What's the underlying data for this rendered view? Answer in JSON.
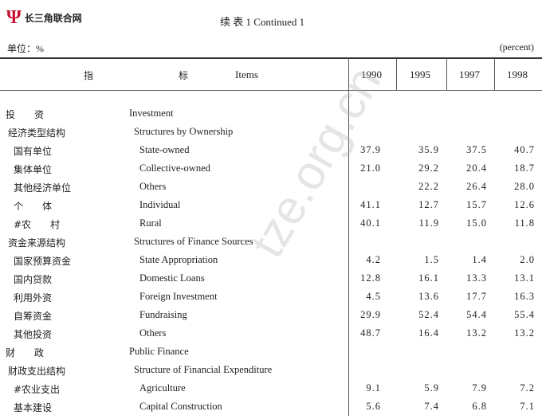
{
  "logo": {
    "text": "长三角联合网"
  },
  "title": "续 表 1   Continued 1",
  "unit_zh": "单位：%",
  "unit_en": "(percent)",
  "header": {
    "zh1": "指",
    "zh2": "标",
    "en": "Items",
    "years": [
      "1990",
      "1995",
      "1997",
      "1998"
    ]
  },
  "rows": [
    {
      "zh": "投　　资",
      "en": "Investment",
      "level": 0,
      "values": [
        "",
        "",
        "",
        ""
      ]
    },
    {
      "zh": "经济类型结构",
      "en": "Structures by Ownership",
      "level": 1,
      "values": [
        "",
        "",
        "",
        ""
      ]
    },
    {
      "zh": "国有单位",
      "en": "State-owned",
      "level": 2,
      "values": [
        "37.9",
        "35.9",
        "37.5",
        "40.7"
      ]
    },
    {
      "zh": "集体单位",
      "en": "Collective-owned",
      "level": 2,
      "values": [
        "21.0",
        "29.2",
        "20.4",
        "18.7"
      ]
    },
    {
      "zh": "其他经济单位",
      "en": "Others",
      "level": 2,
      "values": [
        "",
        "22.2",
        "26.4",
        "28.0"
      ]
    },
    {
      "zh": "个　　体",
      "en": "Individual",
      "level": 2,
      "values": [
        "41.1",
        "12.7",
        "15.7",
        "12.6"
      ]
    },
    {
      "zh": "#农　　村",
      "en": "Rural",
      "level": 2,
      "values": [
        "40.1",
        "11.9",
        "15.0",
        "11.8"
      ]
    },
    {
      "zh": "资金来源结构",
      "en": "Structures of Finance Sources",
      "level": 1,
      "values": [
        "",
        "",
        "",
        ""
      ]
    },
    {
      "zh": "国家预算资金",
      "en": "State Appropriation",
      "level": 2,
      "values": [
        "4.2",
        "1.5",
        "1.4",
        "2.0"
      ]
    },
    {
      "zh": "国内贷款",
      "en": "Domestic Loans",
      "level": 2,
      "values": [
        "12.8",
        "16.1",
        "13.3",
        "13.1"
      ]
    },
    {
      "zh": "利用外资",
      "en": "Foreign Investment",
      "level": 2,
      "values": [
        "4.5",
        "13.6",
        "17.7",
        "16.3"
      ]
    },
    {
      "zh": "自筹资金",
      "en": "Fundraising",
      "level": 2,
      "values": [
        "29.9",
        "52.4",
        "54.4",
        "55.4"
      ]
    },
    {
      "zh": "其他投资",
      "en": "Others",
      "level": 2,
      "values": [
        "48.7",
        "16.4",
        "13.2",
        "13.2"
      ]
    },
    {
      "zh": "财　　政",
      "en": "Public Finance",
      "level": 0,
      "values": [
        "",
        "",
        "",
        ""
      ]
    },
    {
      "zh": "财政支出结构",
      "en": "Structure of Financial Expenditure",
      "level": 1,
      "values": [
        "",
        "",
        "",
        ""
      ]
    },
    {
      "zh": "#农业支出",
      "en": "Agriculture",
      "level": 2,
      "values": [
        "9.1",
        "5.9",
        "7.9",
        "7.2"
      ]
    },
    {
      "zh": "基本建设",
      "en": "Capital Construction",
      "level": 2,
      "values": [
        "5.6",
        "7.4",
        "6.8",
        "7.1"
      ]
    }
  ],
  "watermark": "tze.org.cn",
  "colors": {
    "logo": "#c8102e"
  }
}
